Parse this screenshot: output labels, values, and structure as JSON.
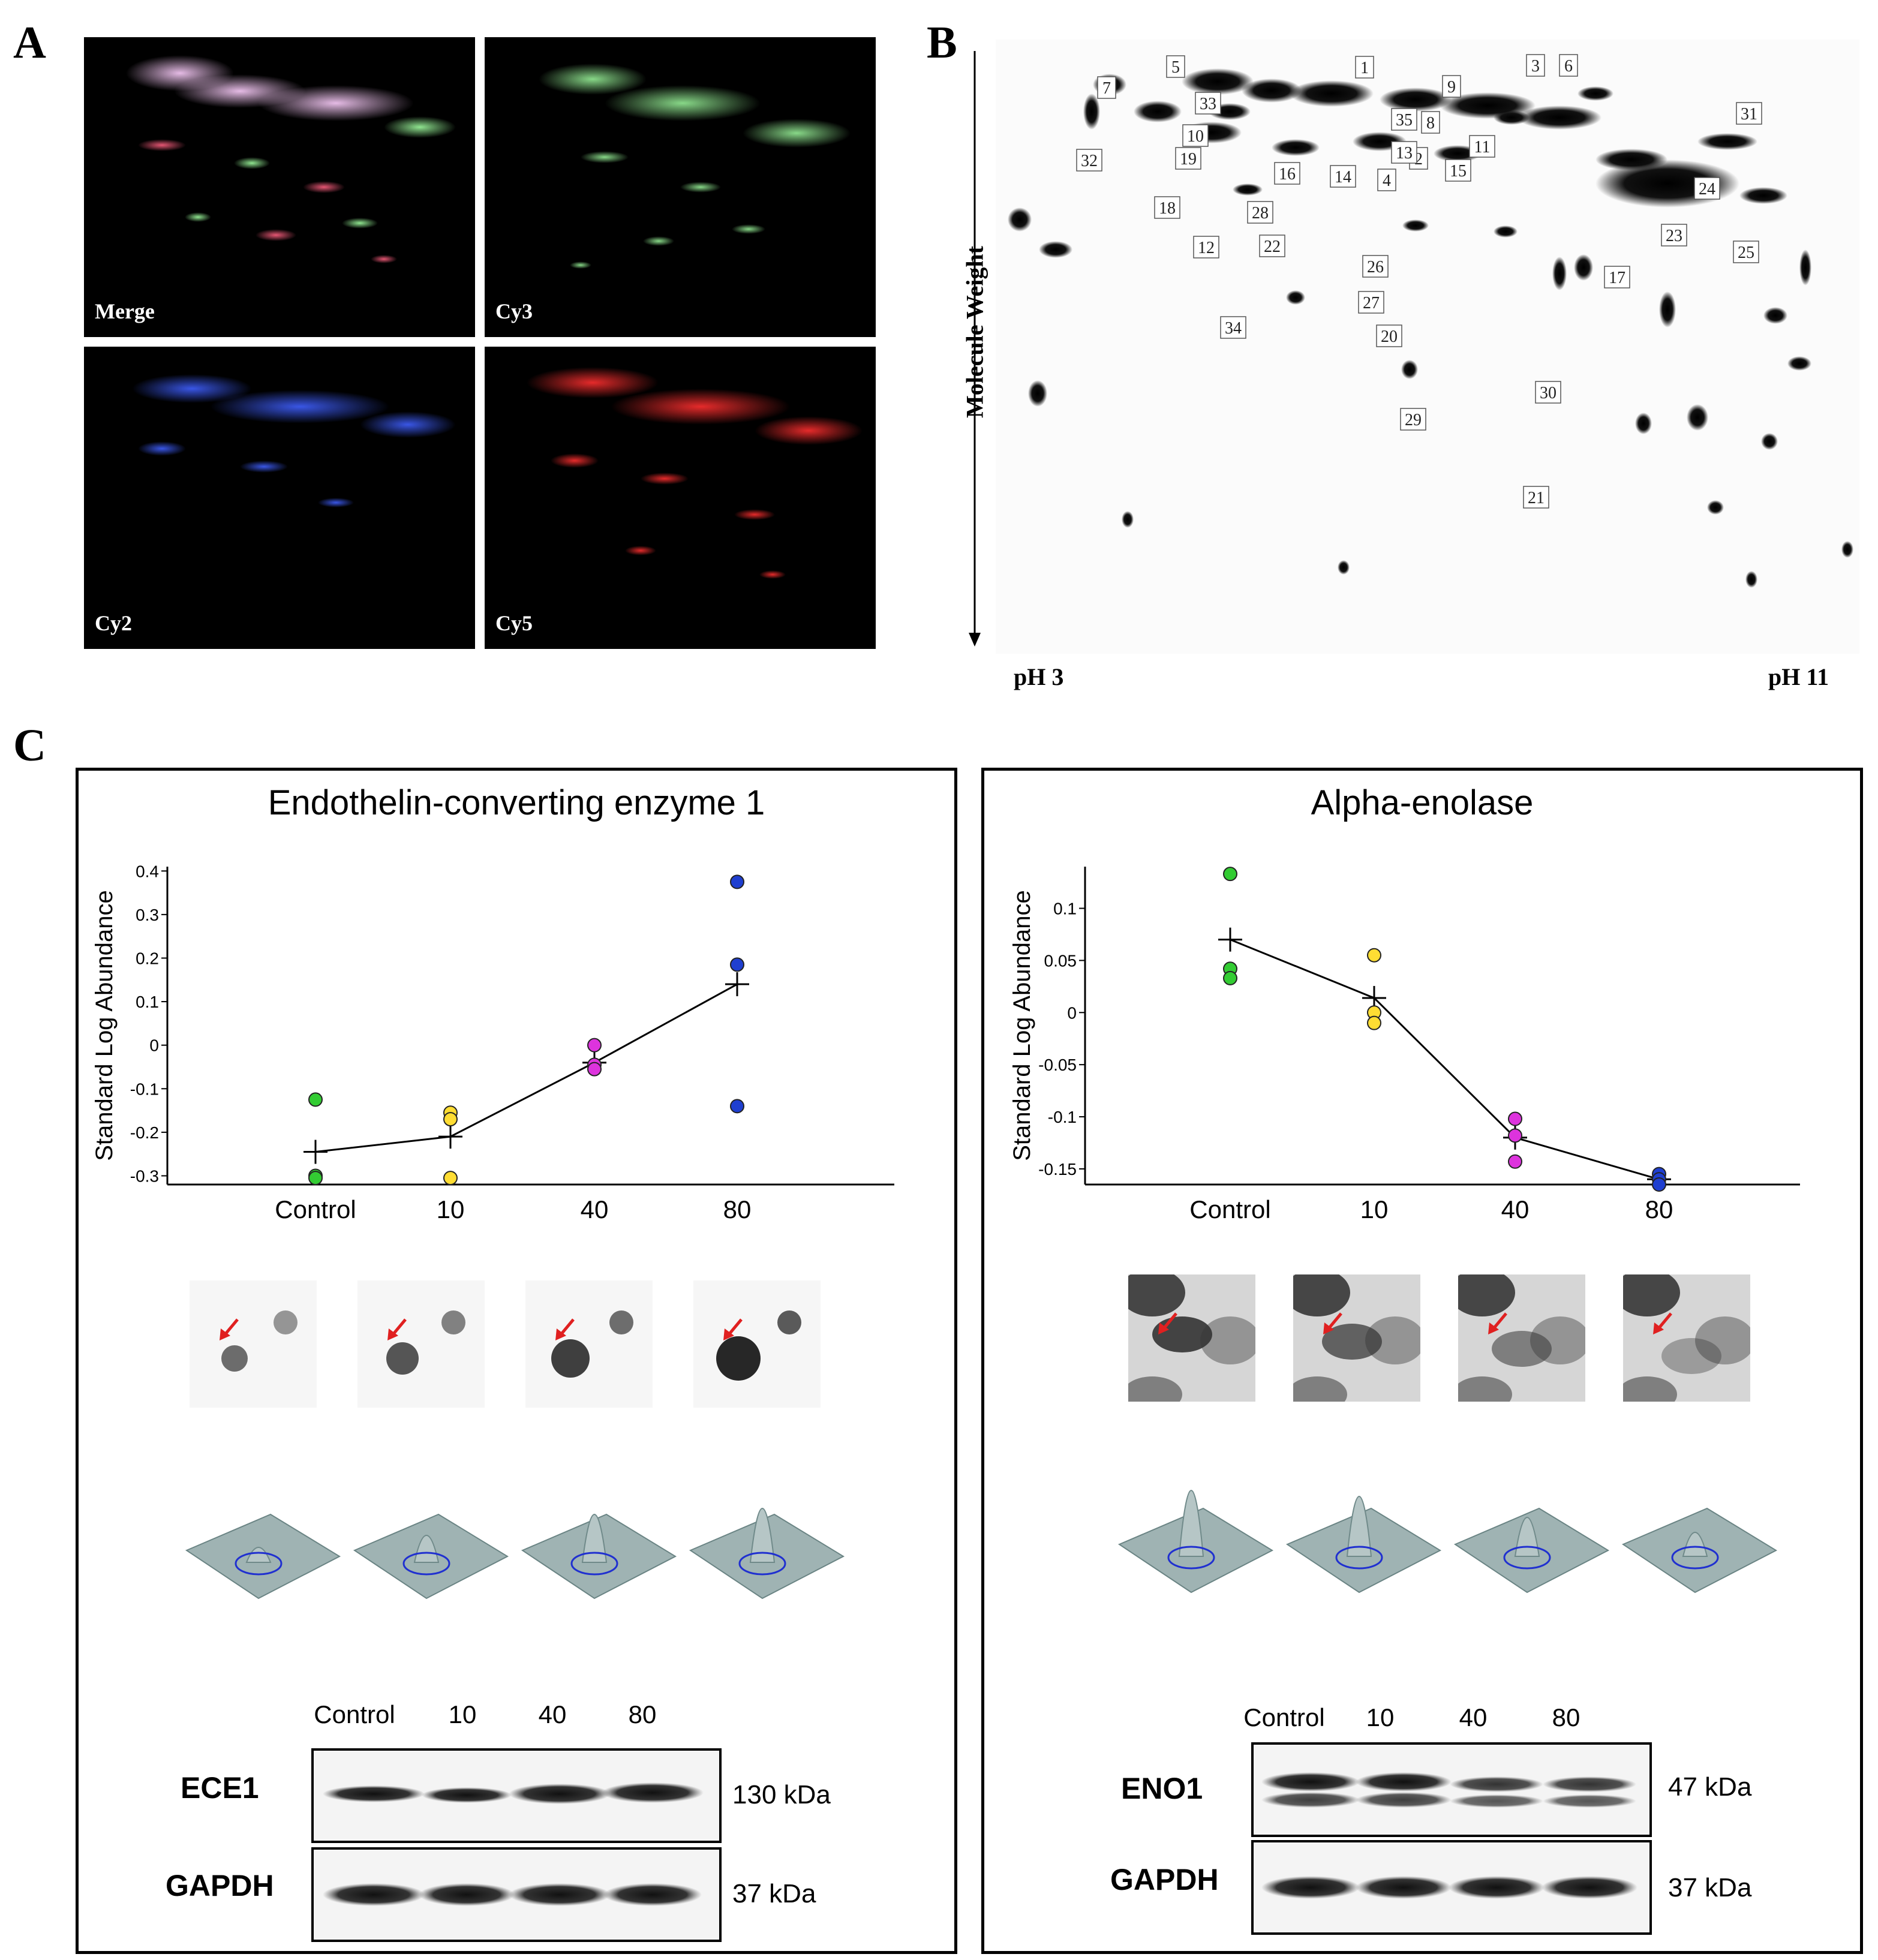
{
  "panel_a": {
    "letter": "A",
    "channels": [
      {
        "label": "Merge",
        "color": "#ffb0ff"
      },
      {
        "label": "Cy3",
        "color": "#2aff2a"
      },
      {
        "label": "Cy2",
        "color": "#2a2aff"
      },
      {
        "label": "Cy5",
        "color": "#ff2020"
      }
    ]
  },
  "panel_b": {
    "letter": "B",
    "y_axis_label": "Molecule Weight",
    "x_left_label": "pH 3",
    "x_right_label": "pH 11",
    "spots": [
      "1",
      "2",
      "3",
      "4",
      "5",
      "6",
      "7",
      "8",
      "9",
      "10",
      "11",
      "12",
      "13",
      "14",
      "15",
      "16",
      "17",
      "18",
      "19",
      "20",
      "21",
      "22",
      "23",
      "24",
      "25",
      "26",
      "27",
      "28",
      "29",
      "30",
      "31",
      "32",
      "33",
      "34",
      "35"
    ]
  },
  "panel_c": {
    "letter": "C",
    "left": {
      "title": "Endothelin-converting enzyme 1",
      "blot_lanes": [
        "Control",
        "10",
        "40",
        "80"
      ],
      "target_label": "ECE1",
      "target_kda": "130 kDa",
      "control_label": "GAPDH",
      "control_kda": "37 kDa"
    },
    "right": {
      "title": "Alpha-enolase",
      "blot_lanes": [
        "Control",
        "10",
        "40",
        "80"
      ],
      "target_label": "ENO1",
      "target_kda": "47 kDa",
      "control_label": "GAPDH",
      "control_kda": "37 kDa"
    }
  },
  "chart_data": [
    {
      "type": "scatter",
      "title": "Endothelin-converting enzyme 1",
      "xlabel": "",
      "ylabel": "Standard Log Abundance",
      "categories": [
        "Control",
        "10",
        "40",
        "80"
      ],
      "yticks": [
        "0.4",
        "0.3",
        "0.2",
        "0.1",
        "0",
        "-0.1",
        "-0.2",
        "-0.3"
      ],
      "ylim": [
        -0.32,
        0.41
      ],
      "points": [
        {
          "x": "Control",
          "y": -0.125,
          "color": "#33cc33"
        },
        {
          "x": "Control",
          "y": -0.3,
          "color": "#33cc33"
        },
        {
          "x": "Control",
          "y": -0.305,
          "color": "#33cc33"
        },
        {
          "x": "10",
          "y": -0.155,
          "color": "#ffdd33"
        },
        {
          "x": "10",
          "y": -0.17,
          "color": "#ffdd33"
        },
        {
          "x": "10",
          "y": -0.305,
          "color": "#ffdd33"
        },
        {
          "x": "40",
          "y": 0.0,
          "color": "#dd33dd"
        },
        {
          "x": "40",
          "y": -0.045,
          "color": "#dd33dd"
        },
        {
          "x": "40",
          "y": -0.055,
          "color": "#dd33dd"
        },
        {
          "x": "80",
          "y": 0.375,
          "color": "#1f3fd0"
        },
        {
          "x": "80",
          "y": 0.185,
          "color": "#1f3fd0"
        },
        {
          "x": "80",
          "y": -0.14,
          "color": "#1f3fd0"
        }
      ],
      "means": [
        -0.245,
        -0.21,
        -0.04,
        0.14
      ]
    },
    {
      "type": "scatter",
      "title": "Alpha-enolase",
      "xlabel": "",
      "ylabel": "Standard Log Abundance",
      "categories": [
        "Control",
        "10",
        "40",
        "80"
      ],
      "yticks": [
        "0.1",
        "0.05",
        "0",
        "-0.05",
        "-0.1",
        "-0.15"
      ],
      "ylim": [
        -0.165,
        0.14
      ],
      "points": [
        {
          "x": "Control",
          "y": 0.133,
          "color": "#33cc33"
        },
        {
          "x": "Control",
          "y": 0.042,
          "color": "#33cc33"
        },
        {
          "x": "Control",
          "y": 0.033,
          "color": "#33cc33"
        },
        {
          "x": "10",
          "y": 0.055,
          "color": "#ffdd33"
        },
        {
          "x": "10",
          "y": 0.0,
          "color": "#ffdd33"
        },
        {
          "x": "10",
          "y": -0.01,
          "color": "#ffdd33"
        },
        {
          "x": "40",
          "y": -0.102,
          "color": "#dd33dd"
        },
        {
          "x": "40",
          "y": -0.118,
          "color": "#dd33dd"
        },
        {
          "x": "40",
          "y": -0.143,
          "color": "#dd33dd"
        },
        {
          "x": "80",
          "y": -0.155,
          "color": "#1f3fd0"
        },
        {
          "x": "80",
          "y": -0.16,
          "color": "#1f3fd0"
        },
        {
          "x": "80",
          "y": -0.165,
          "color": "#1f3fd0"
        }
      ],
      "means": [
        0.07,
        0.014,
        -0.12,
        -0.16
      ]
    }
  ]
}
